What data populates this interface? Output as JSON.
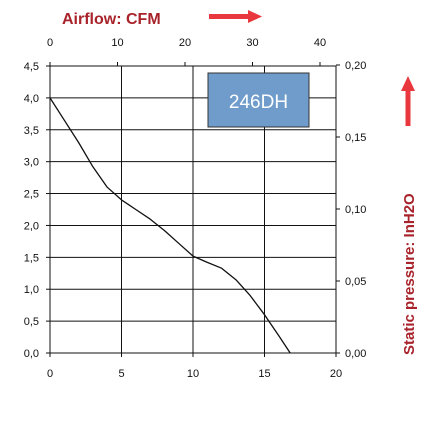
{
  "chart_data": {
    "type": "line",
    "title": "",
    "top_axis_label": "Airflow: CFM",
    "right_axis_label": "Static pressure: InH2O",
    "model_label": "246DH",
    "x_bottom_ticks": [
      "0",
      "5",
      "10",
      "15",
      "20"
    ],
    "x_top_ticks": [
      "0",
      "10",
      "20",
      "30",
      "40"
    ],
    "y_left_ticks": [
      "0,0",
      "0,5",
      "1,0",
      "1,5",
      "2,0",
      "2,5",
      "3,0",
      "3,5",
      "4,0",
      "4,5"
    ],
    "y_right_ticks": [
      "0,00",
      "0,05",
      "0,10",
      "0,15",
      "0,20"
    ],
    "xlim": [
      0,
      20
    ],
    "ylim": [
      0,
      4.5
    ],
    "grid": true,
    "series": [
      {
        "x": [
          0,
          1,
          2,
          3,
          4,
          5,
          6,
          7,
          8,
          9,
          10,
          11,
          12,
          13,
          14,
          15,
          16,
          16.8
        ],
        "y": [
          4.0,
          3.65,
          3.3,
          2.92,
          2.6,
          2.4,
          2.25,
          2.1,
          1.92,
          1.72,
          1.52,
          1.42,
          1.33,
          1.15,
          0.9,
          0.6,
          0.27,
          0.0
        ]
      }
    ],
    "colors": {
      "line": "#111111",
      "grid": "#111111",
      "label": "#a8232b",
      "arrow": "#e8383d",
      "model_box_fill": "#6f9ccb",
      "model_box_border": "#333333"
    }
  }
}
